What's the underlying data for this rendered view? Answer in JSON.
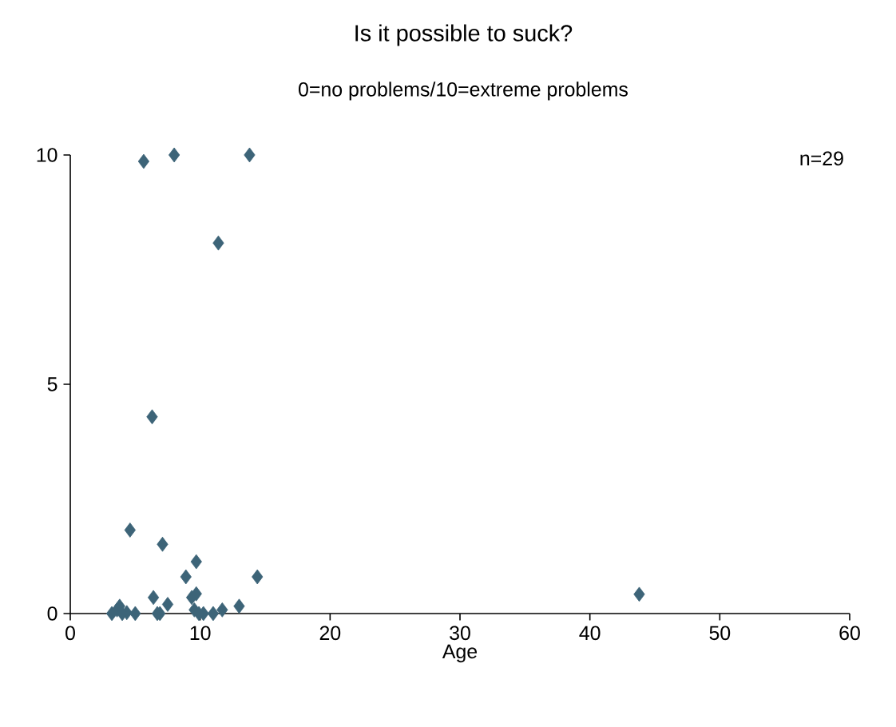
{
  "chart_data": {
    "type": "scatter",
    "title": "Is it possible to suck?",
    "subtitle": "0=no problems/10=extreme problems",
    "xlabel": "Age",
    "annotations": [
      "n=29"
    ],
    "x": [
      5.65,
      8.0,
      13.8,
      11.4,
      6.3,
      4.6,
      7.1,
      9.7,
      8.9,
      14.4,
      43.8,
      3.2,
      3.8,
      4.35,
      5.0,
      6.4,
      6.9,
      7.5,
      9.35,
      9.7,
      9.55,
      10.25,
      11.0,
      11.7,
      13.0,
      3.6,
      6.7,
      4.0,
      9.9
    ],
    "values": [
      9.86,
      10,
      10,
      8.08,
      4.29,
      1.82,
      1.51,
      1.13,
      0.8,
      0.8,
      0.42,
      0,
      0.16,
      0.02,
      0,
      0.35,
      0,
      0.2,
      0.35,
      0.43,
      0.08,
      0,
      0,
      0.08,
      0.16,
      0.08,
      0,
      0,
      0
    ],
    "color": "#3d6478",
    "marker": "diamond",
    "grid": false,
    "xlim": [
      0,
      60
    ],
    "xticks": [
      0,
      10,
      20,
      30,
      40,
      50,
      60
    ],
    "ylim": [
      0,
      10
    ],
    "yticks": [
      0,
      5,
      10
    ]
  }
}
